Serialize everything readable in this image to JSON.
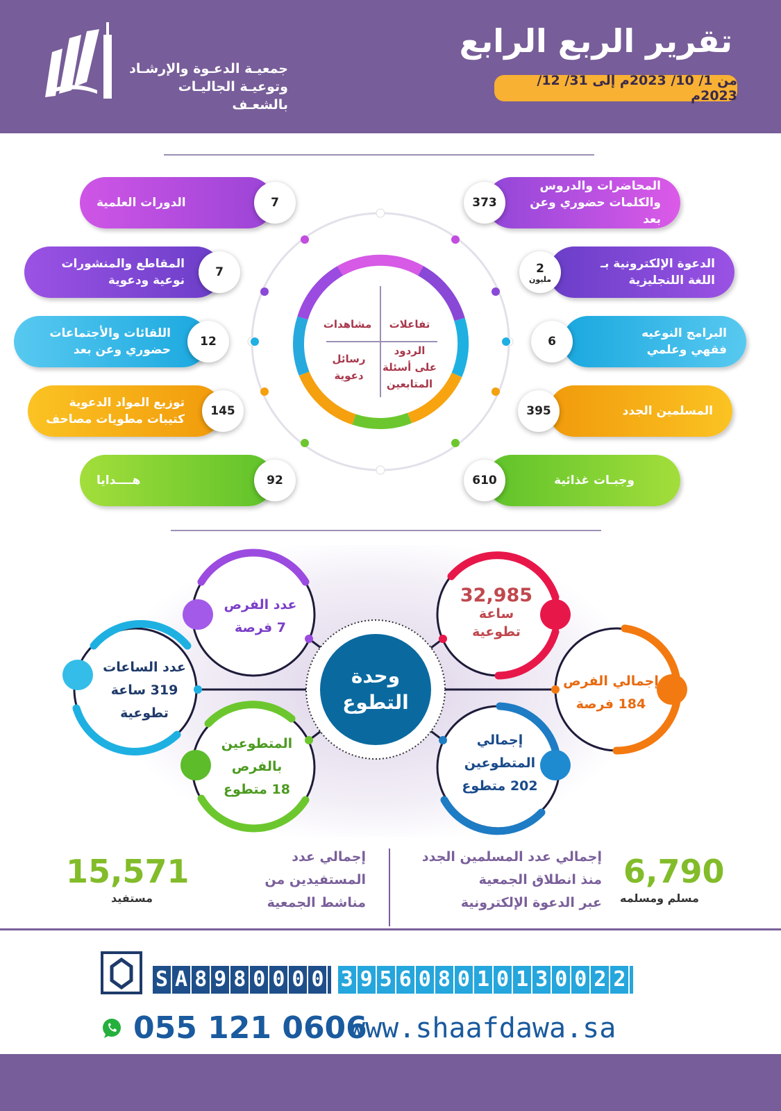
{
  "header": {
    "title": "تقرير الربع الرابع",
    "date_range": "من 1/ 10/ 2023م إلى 31/ 12/ 2023م",
    "org_name_line1": "جمعيـة الدعـوة والإرشـاد",
    "org_name_line2": "وتوعيـة الجاليـات بالشعـف",
    "logo": "mosque-minaret-book-logo"
  },
  "colors": {
    "header": "#775d99",
    "accent_orange": "#f8b133",
    "volunteer_center": "#0a6aa0",
    "stat_green": "#82bc2a"
  },
  "center_circle": {
    "q1": "تفاعلات",
    "q2": "مشاهدات",
    "q3": "الردود على أسئلة المتابعين",
    "q4": "رسائل دعوية"
  },
  "activities_right": [
    {
      "value": "373",
      "label": "المحاضرات والدروس والكلمات حضوري وعن بعد"
    },
    {
      "value": "2",
      "unit": "مليون",
      "label": "الدعوة الإلكترونية بـ اللغة اللنجليزية"
    },
    {
      "value": "6",
      "label": "البرامج النوعيه فقهي وعلمي"
    },
    {
      "value": "395",
      "label": "المسلمين الجدد"
    },
    {
      "value": "610",
      "label": "وجبـات غذائية"
    }
  ],
  "activities_left": [
    {
      "value": "7",
      "label": "الدورات العلمية"
    },
    {
      "value": "7",
      "label": "المقاطع والمنشورات نوعية ودعوية"
    },
    {
      "value": "12",
      "label": "اللقائات والأجتماعات حضوري وعن بعد"
    },
    {
      "value": "145",
      "label": "توزيع المواد الدعوية كتيبات مطويات مصاحف"
    },
    {
      "value": "92",
      "label": "هــــدايا"
    }
  ],
  "volunteer": {
    "center": "وحدة التطوع",
    "items": [
      {
        "l1": "عدد الفرص",
        "l2": "7 فرصة",
        "l3": ""
      },
      {
        "l1": "عدد الساعات",
        "l2": "319 ساعة",
        "l3": "تطوعية"
      },
      {
        "l1": "المتطوعين",
        "l2": "بالفرص",
        "l3": "18 متطوع"
      },
      {
        "l1": "32,985",
        "l2": "ساعة",
        "l3": "تطوعية"
      },
      {
        "l1": "إجمالي الفرص",
        "l2": "184 فرصة",
        "l3": ""
      },
      {
        "l1": "إجمالي",
        "l2": "المتطوعين",
        "l3": "202 متطوع"
      }
    ]
  },
  "stats": {
    "new_muslims": {
      "value": "6,790",
      "unit": "مسلم ومسلمه",
      "label1": "إجمالي عدد المسلمين الجدد",
      "label2": "منذ انطلاق الجمعية",
      "label3": "عبر الدعوة الإلكترونية"
    },
    "beneficiaries": {
      "value": "15,571",
      "unit": "مستفيد",
      "label1": "إجمالي عدد",
      "label2": "المستفيدين من",
      "label3": "مناشط الجمعية"
    }
  },
  "contact": {
    "iban_part1": "SA8980000",
    "iban_part2": "395608010130022",
    "phone": "055 121 0606",
    "website": "www.shaafdawa.sa"
  }
}
